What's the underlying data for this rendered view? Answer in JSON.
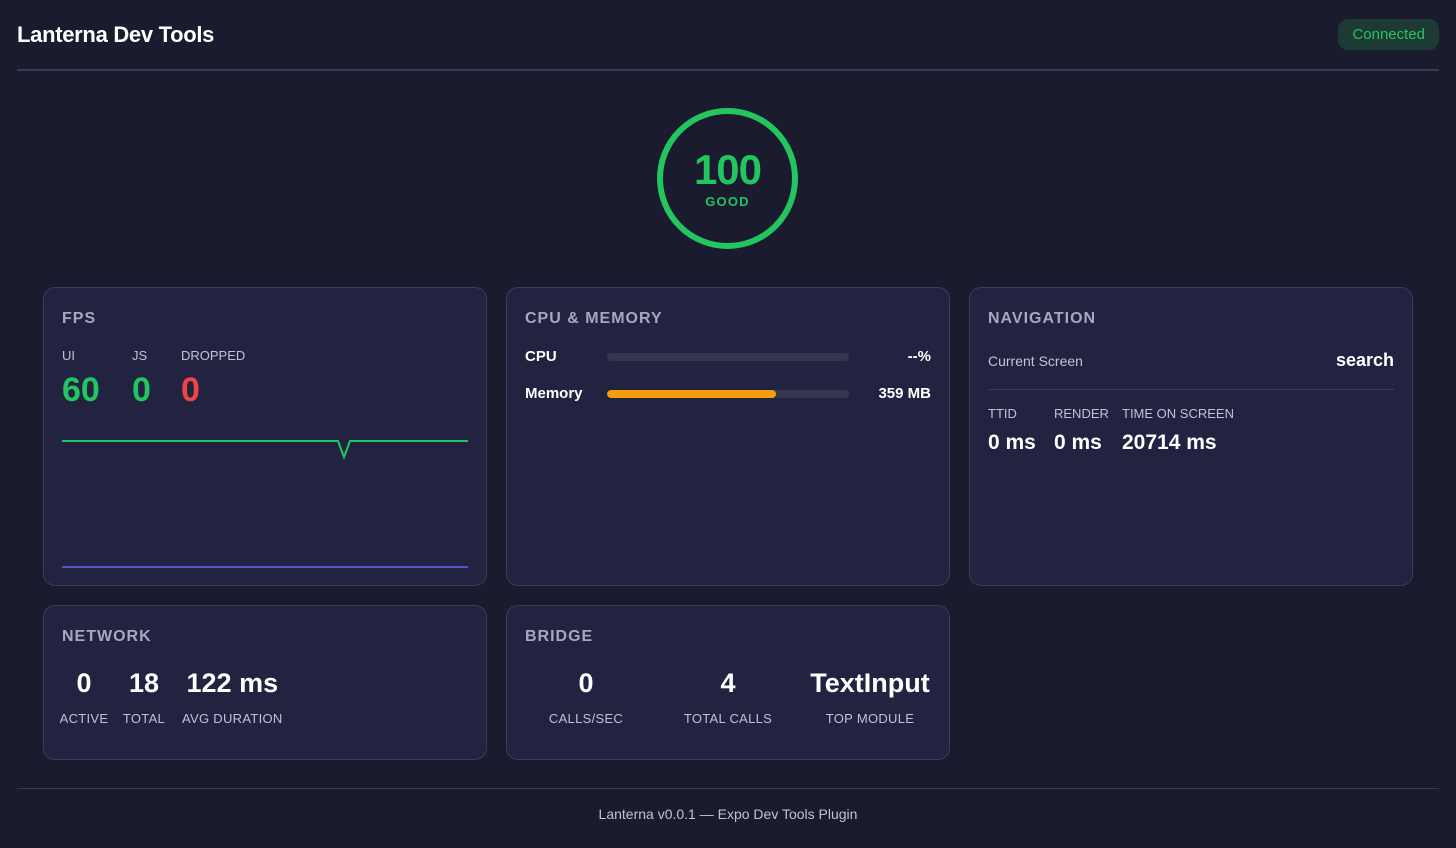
{
  "header": {
    "title": "Lanterna Dev Tools",
    "status": "Connected"
  },
  "score": {
    "value": "100",
    "label": "GOOD"
  },
  "fps": {
    "title": "FPS",
    "labels": {
      "ui": "UI",
      "js": "JS",
      "dropped": "DROPPED"
    },
    "values": {
      "ui": "60",
      "js": "0",
      "dropped": "0"
    }
  },
  "cpu_memory": {
    "title": "CPU & MEMORY",
    "cpu": {
      "label": "CPU",
      "value": "--%",
      "fill_fraction": 0
    },
    "memory": {
      "label": "Memory",
      "value": "359 MB",
      "fill_fraction": 0.7
    }
  },
  "navigation": {
    "title": "NAVIGATION",
    "current_screen_label": "Current Screen",
    "current_screen_value": "search",
    "metrics": [
      {
        "label": "TTID",
        "value": "0 ms"
      },
      {
        "label": "RENDER",
        "value": "0 ms"
      },
      {
        "label": "TIME ON SCREEN",
        "value": "20714 ms"
      }
    ]
  },
  "network": {
    "title": "NETWORK",
    "stats": [
      {
        "value": "0",
        "label": "ACTIVE"
      },
      {
        "value": "18",
        "label": "TOTAL"
      },
      {
        "value": "122 ms",
        "label": "AVG DURATION"
      }
    ]
  },
  "bridge": {
    "title": "BRIDGE",
    "stats": [
      {
        "value": "0",
        "label": "CALLS/SEC"
      },
      {
        "value": "4",
        "label": "TOTAL CALLS"
      },
      {
        "value": "TextInput",
        "label": "TOP MODULE"
      }
    ]
  },
  "footer": {
    "text": "Lanterna v0.0.1 — Expo Dev Tools Plugin"
  },
  "colors": {
    "background": "#1a1b2e",
    "card": "#222340",
    "good": "#22c55e",
    "bad": "#ef4444",
    "memory": "#f59e0b",
    "js_line": "#6366f1"
  }
}
